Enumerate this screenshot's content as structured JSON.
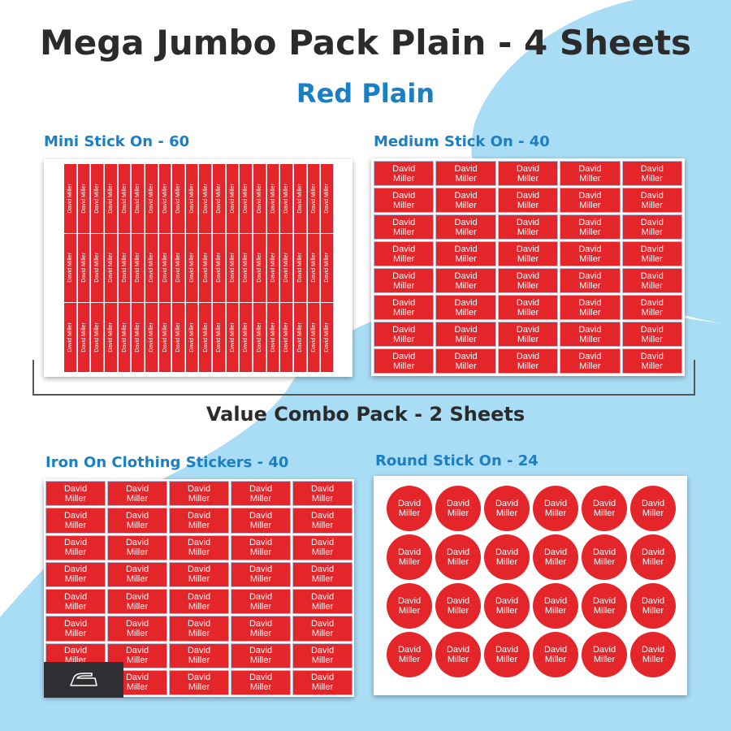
{
  "header": {
    "title": "Mega Jumbo Pack Plain - 4 Sheets",
    "subtitle": "Red Plain"
  },
  "colors": {
    "label_red": "#e4262a",
    "accent_blue": "#1b7fc4",
    "background_blue": "#a9dcf5",
    "title_dark": "#2b2b2b"
  },
  "label_name": "David Miller",
  "label_first": "David",
  "label_last": "Miller",
  "sections": {
    "mini": {
      "title": "Mini Stick On - 60"
    },
    "medium": {
      "title": "Medium Stick On - 40"
    },
    "iron": {
      "title": "Iron On Clothing Stickers - 40",
      "badge_icon": "iron-icon"
    },
    "round": {
      "title": "Round Stick On - 24"
    }
  },
  "combo": {
    "label": "Value Combo Pack - 2 Sheets"
  }
}
